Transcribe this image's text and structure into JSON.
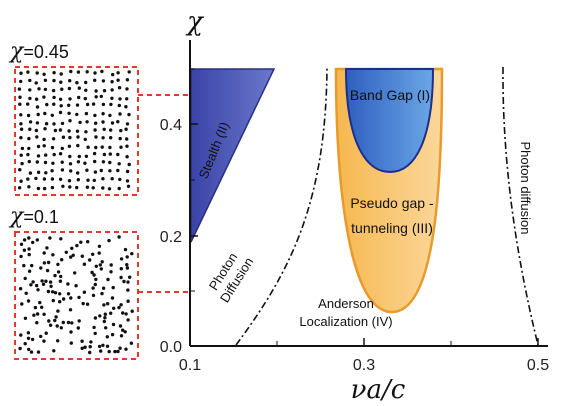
{
  "axes": {
    "y_title": "χ",
    "x_title": "νa/c",
    "x_ticks": [
      "0.1",
      "0.3",
      "0.5"
    ],
    "y_ticks": [
      "0.0",
      "0.2",
      "0.4"
    ]
  },
  "regions": {
    "stealth": "Stealth (II)",
    "band_gap": "Band Gap (I)",
    "pseudo_gap_line1": "Pseudo gap -",
    "pseudo_gap_line2": "tunneling (III)",
    "photon_diffusion_left_line1": "Photon",
    "photon_diffusion_left_line2": "Diffusion",
    "anderson_line1": "Anderson",
    "anderson_line2": "Localization (IV)",
    "photon_diffusion_right": "Photon diffusion"
  },
  "insets": [
    {
      "chi_symbol": "χ",
      "value_text": "=0.45",
      "chi": 0.45
    },
    {
      "chi_symbol": "χ",
      "value_text": "=0.1",
      "chi": 0.1
    }
  ],
  "colors": {
    "stealth_fill": "#4a55b4",
    "band_gap_fill": "#4f87d6",
    "pseudo_gap_fill": "#f6bd66",
    "pseudo_gap_edge": "#e89a2c",
    "band_gap_edge": "#1d2f8a",
    "inset_border": "#e03a2a"
  }
}
